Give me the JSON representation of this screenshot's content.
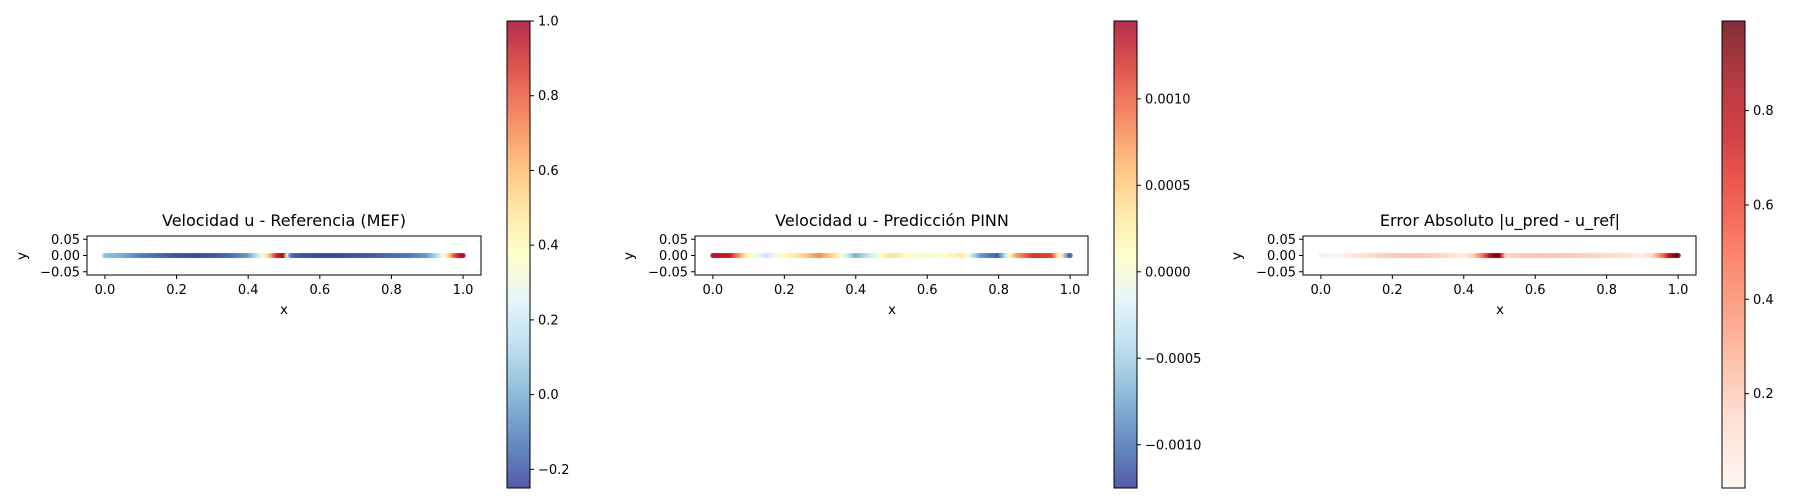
{
  "chart_data": [
    {
      "type": "scatter",
      "title": "Velocidad u - Referencia (MEF)",
      "xlabel": "x",
      "ylabel": "y",
      "xlim": [
        -0.05,
        1.05
      ],
      "ylim": [
        -0.06,
        0.06
      ],
      "xticks": [
        "0.0",
        "0.2",
        "0.4",
        "0.6",
        "0.8",
        "1.0"
      ],
      "yticks": [
        "0.05",
        "0.00",
        "−0.05"
      ],
      "colormap": "RdYlBu_r",
      "colorbar": {
        "min": -0.25,
        "max": 1.0,
        "ticks": [
          "−0.2",
          "0.0",
          "0.2",
          "0.4",
          "0.6",
          "0.8",
          "1.0"
        ]
      },
      "x": [
        0.0,
        0.05,
        0.1,
        0.15,
        0.2,
        0.25,
        0.3,
        0.35,
        0.4,
        0.43,
        0.46,
        0.48,
        0.5,
        0.52,
        0.55,
        0.6,
        0.65,
        0.7,
        0.75,
        0.8,
        0.85,
        0.9,
        0.93,
        0.96,
        0.98,
        1.0
      ],
      "y": [
        0,
        0,
        0,
        0,
        0,
        0,
        0,
        0,
        0,
        0,
        0,
        0,
        0,
        0,
        0,
        0,
        0,
        0,
        0,
        0,
        0,
        0,
        0,
        0,
        0,
        0
      ],
      "c": [
        0.05,
        0.0,
        -0.1,
        -0.15,
        -0.2,
        -0.22,
        -0.2,
        -0.15,
        -0.05,
        0.2,
        0.55,
        0.9,
        1.0,
        -0.15,
        -0.2,
        -0.22,
        -0.22,
        -0.2,
        -0.18,
        -0.15,
        -0.12,
        -0.05,
        0.15,
        0.5,
        0.85,
        1.0
      ]
    },
    {
      "type": "scatter",
      "title": "Velocidad u - Predicción PINN",
      "xlabel": "x",
      "ylabel": "y",
      "xlim": [
        -0.05,
        1.05
      ],
      "ylim": [
        -0.06,
        0.06
      ],
      "xticks": [
        "0.0",
        "0.2",
        "0.4",
        "0.6",
        "0.8",
        "1.0"
      ],
      "yticks": [
        "0.05",
        "0.00",
        "−0.05"
      ],
      "colormap": "RdYlBu_r",
      "colorbar": {
        "min": -0.00125,
        "max": 0.00145,
        "ticks": [
          "−0.0010",
          "−0.0005",
          "0.0000",
          "0.0005",
          "0.0010"
        ]
      },
      "x": [
        0.0,
        0.05,
        0.1,
        0.15,
        0.2,
        0.25,
        0.3,
        0.35,
        0.4,
        0.45,
        0.5,
        0.55,
        0.6,
        0.65,
        0.7,
        0.75,
        0.8,
        0.85,
        0.9,
        0.95,
        1.0
      ],
      "y": [
        0,
        0,
        0,
        0,
        0,
        0,
        0,
        0,
        0,
        0,
        0,
        0,
        0,
        0,
        0,
        0,
        0,
        0,
        0,
        0,
        0
      ],
      "c": [
        0.0014,
        0.0013,
        0.0002,
        -0.0003,
        0.0001,
        0.0004,
        0.0008,
        0.0003,
        -0.0007,
        -0.0002,
        0.0004,
        0.0001,
        0.0,
        0.0001,
        0.0003,
        -0.0008,
        -0.0011,
        0.0007,
        0.0012,
        0.0011,
        -0.0011
      ]
    },
    {
      "type": "scatter",
      "title": "Error Absoluto |u_pred - u_ref|",
      "xlabel": "x",
      "ylabel": "y",
      "xlim": [
        -0.05,
        1.05
      ],
      "ylim": [
        -0.06,
        0.06
      ],
      "xticks": [
        "0.0",
        "0.2",
        "0.4",
        "0.6",
        "0.8",
        "1.0"
      ],
      "yticks": [
        "0.05",
        "0.00",
        "−0.05"
      ],
      "colormap": "Reds",
      "colorbar": {
        "min": 0.0,
        "max": 0.99,
        "ticks": [
          "0.2",
          "0.4",
          "0.6",
          "0.8"
        ]
      },
      "x": [
        0.0,
        0.05,
        0.1,
        0.15,
        0.2,
        0.25,
        0.3,
        0.35,
        0.4,
        0.43,
        0.46,
        0.48,
        0.5,
        0.52,
        0.55,
        0.6,
        0.65,
        0.7,
        0.75,
        0.8,
        0.85,
        0.9,
        0.93,
        0.96,
        0.98,
        1.0
      ],
      "y": [
        0,
        0,
        0,
        0,
        0,
        0,
        0,
        0,
        0,
        0,
        0,
        0,
        0,
        0,
        0,
        0,
        0,
        0,
        0,
        0,
        0,
        0,
        0,
        0,
        0,
        0
      ],
      "c": [
        0.05,
        0.0,
        0.1,
        0.15,
        0.2,
        0.22,
        0.2,
        0.15,
        0.05,
        0.2,
        0.55,
        0.9,
        0.99,
        0.15,
        0.2,
        0.22,
        0.22,
        0.2,
        0.18,
        0.15,
        0.12,
        0.05,
        0.15,
        0.5,
        0.85,
        0.99
      ]
    }
  ]
}
